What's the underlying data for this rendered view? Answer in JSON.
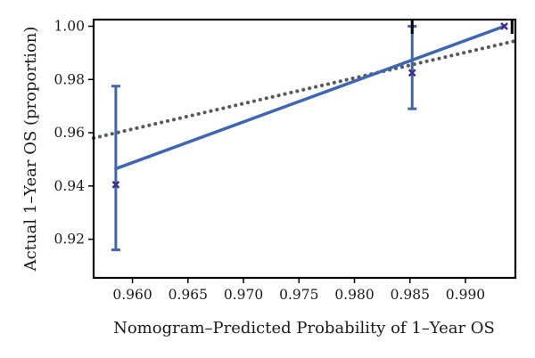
{
  "chart_data": {
    "type": "line",
    "title": "",
    "xlabel": "Nomogram–Predicted Probability of 1–Year OS",
    "ylabel": "Actual 1–Year OS (proportion)",
    "xlim": [
      0.9565,
      0.9945
    ],
    "ylim": [
      0.9055,
      1.0025
    ],
    "x_ticks": [
      0.96,
      0.965,
      0.97,
      0.975,
      0.98,
      0.985,
      0.99
    ],
    "x_tick_labels": [
      "0.960",
      "0.965",
      "0.970",
      "0.975",
      "0.980",
      "0.985",
      "0.990"
    ],
    "y_ticks": [
      0.92,
      0.94,
      0.96,
      0.98,
      1.0
    ],
    "y_tick_labels": [
      "0.92",
      "0.94",
      "0.96",
      "0.98",
      "1.00"
    ],
    "grid": false,
    "legend": "none",
    "series": [
      {
        "kind": "calibration-line",
        "color": "#3f66b0",
        "points": [
          {
            "x": 0.9585,
            "y": 0.9465
          },
          {
            "x": 0.9935,
            "y": 1.0
          }
        ]
      },
      {
        "kind": "ideal-reference",
        "style": "dotted",
        "color": "#555b5b",
        "points": [
          {
            "x": 0.9565,
            "y": 0.958
          },
          {
            "x": 0.9945,
            "y": 0.9945
          }
        ]
      },
      {
        "kind": "observed-points",
        "color": "#3f66b0",
        "marker_color": "#3a2f8a",
        "points": [
          {
            "x": 0.9585,
            "y": 0.9405,
            "lower": 0.916,
            "upper": 0.9775
          },
          {
            "x": 0.9852,
            "y": 0.9825,
            "lower": 0.969,
            "upper": 1.0
          },
          {
            "x": 0.9935,
            "y": 1.0,
            "lower": 1.0,
            "upper": 1.0
          }
        ]
      }
    ],
    "rug_ticks_x": [
      0.9852,
      0.9942
    ]
  }
}
